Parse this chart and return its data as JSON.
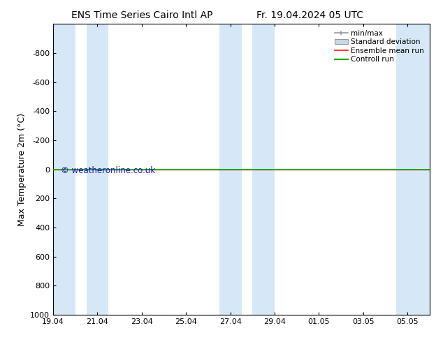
{
  "title_left": "ENS Time Series Cairo Intl AP",
  "title_right": "Fr. 19.04.2024 05 UTC",
  "ylabel": "Max Temperature 2m (°C)",
  "ylim_bottom": 1000,
  "ylim_top": -1000,
  "yticks": [
    -800,
    -600,
    -400,
    -200,
    0,
    200,
    400,
    600,
    800,
    1000
  ],
  "background_color": "#ffffff",
  "plot_bg_color": "#ffffff",
  "band_color": "#d6e8f7",
  "green_line_y": 0,
  "red_line_y": 0,
  "watermark": "© weatheronline.co.uk",
  "watermark_color": "#0000cc",
  "x_tick_labels": [
    "19.04",
    "21.04",
    "23.04",
    "25.04",
    "27.04",
    "29.04",
    "01.05",
    "03.05",
    "05.05"
  ],
  "x_tick_positions": [
    0,
    2,
    4,
    6,
    8,
    10,
    12,
    14,
    16
  ],
  "x_min": 0,
  "x_max": 17,
  "band_pairs": [
    [
      0,
      1
    ],
    [
      1.5,
      2.5
    ],
    [
      7.5,
      8.5
    ],
    [
      9,
      10
    ],
    [
      15.5,
      17
    ]
  ],
  "minmax_color": "#999999",
  "stddev_color": "#c8d8e8",
  "mean_color": "#ff4444",
  "ctrl_color": "#00aa00"
}
